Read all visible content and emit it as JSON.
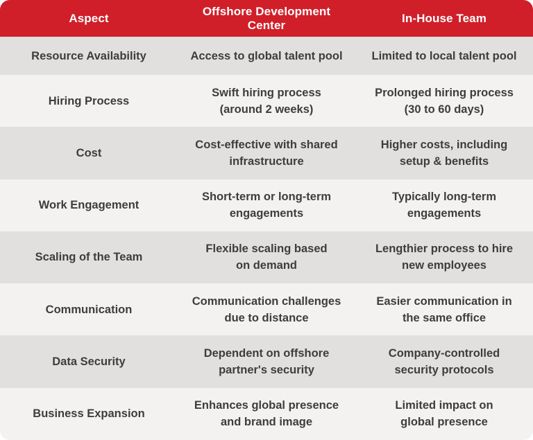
{
  "header": {
    "columns": [
      "Aspect",
      "Offshore Development Center",
      "In-House Team"
    ]
  },
  "rows": [
    {
      "aspect": "Resource Availability",
      "offshore": "Access to global talent pool",
      "inhouse": "Limited to local talent pool"
    },
    {
      "aspect": "Hiring Process",
      "offshore": "Swift hiring process\n(around 2 weeks)",
      "inhouse": "Prolonged hiring process\n(30 to 60 days)"
    },
    {
      "aspect": "Cost",
      "offshore": "Cost-effective with shared\ninfrastructure",
      "inhouse": "Higher costs, including\nsetup & benefits"
    },
    {
      "aspect": "Work Engagement",
      "offshore": "Short-term or long-term\nengagements",
      "inhouse": "Typically long-term\nengagements"
    },
    {
      "aspect": "Scaling of the Team",
      "offshore": "Flexible scaling based\non demand",
      "inhouse": "Lengthier process to hire\nnew employees"
    },
    {
      "aspect": "Communication",
      "offshore": "Communication challenges\ndue to distance",
      "inhouse": "Easier communication in\nthe same office"
    },
    {
      "aspect": "Data Security",
      "offshore": "Dependent on offshore\npartner's security",
      "inhouse": "Company-controlled\nsecurity protocols"
    },
    {
      "aspect": "Business Expansion",
      "offshore": "Enhances global presence\nand brand image",
      "inhouse": "Limited impact on\nglobal presence"
    }
  ],
  "colors": {
    "header_bg": "#d01f29",
    "header_text": "#ffffff",
    "row_gray": "#e1e0de",
    "row_light": "#f3f2f0",
    "body_text": "#3d3d3d"
  },
  "chart_data": {
    "type": "table",
    "title": "Offshore Development Center vs In-House Team comparison",
    "columns": [
      "Aspect",
      "Offshore Development Center",
      "In-House Team"
    ],
    "rows": [
      [
        "Resource Availability",
        "Access to global talent pool",
        "Limited to local talent pool"
      ],
      [
        "Hiring Process",
        "Swift hiring process (around 2 weeks)",
        "Prolonged hiring process (30 to 60 days)"
      ],
      [
        "Cost",
        "Cost-effective with shared infrastructure",
        "Higher costs, including setup & benefits"
      ],
      [
        "Work Engagement",
        "Short-term or long-term engagements",
        "Typically long-term engagements"
      ],
      [
        "Scaling of the Team",
        "Flexible scaling based on demand",
        "Lengthier process to hire new employees"
      ],
      [
        "Communication",
        "Communication challenges due to distance",
        "Easier communication in the same office"
      ],
      [
        "Data Security",
        "Dependent on offshore partner's security",
        "Company-controlled security protocols"
      ],
      [
        "Business Expansion",
        "Enhances global presence and brand image",
        "Limited impact on global presence"
      ]
    ],
    "layout": {
      "header_position": "top",
      "grid": false,
      "row_striping": "alternating gray/light"
    }
  }
}
